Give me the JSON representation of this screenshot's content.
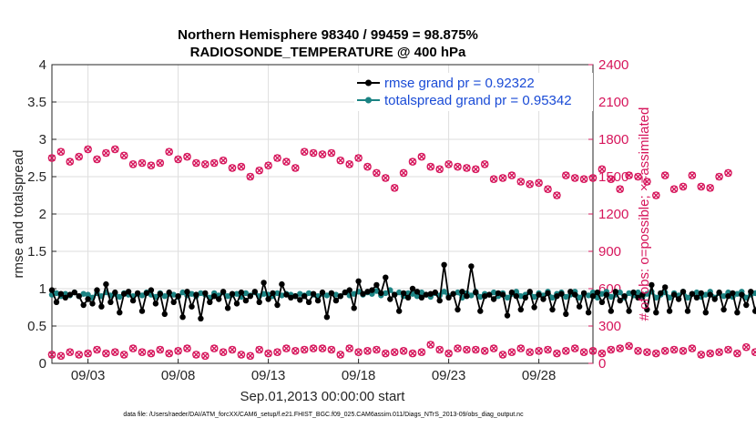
{
  "chart_data": {
    "type": "line",
    "title": "Northern Hemisphere 98340 / 99459 = 98.875%",
    "subtitle": "RADIOSONDE_TEMPERATURE @ 400 hPa",
    "xlabel": "Sep.01,2013 00:00:00 start",
    "ylabel_left": "rmse and totalspread",
    "ylabel_right": "# of obs: o=possible; ×=assimilated",
    "footnote": "data file: /Users/raeder/DAI/ATM_forcXX/CAM6_setup/f.e21.FHIST_BGC.f09_025.CAM6assim.011/Diags_NTrS_2013-09/obs_diag_output.nc",
    "x_range_days": [
      1.0,
      31.0
    ],
    "x_ticks": [
      {
        "day": 3,
        "label": "09/03"
      },
      {
        "day": 8,
        "label": "09/08"
      },
      {
        "day": 13,
        "label": "09/13"
      },
      {
        "day": 18,
        "label": "09/18"
      },
      {
        "day": 23,
        "label": "09/23"
      },
      {
        "day": 28,
        "label": "09/28"
      }
    ],
    "ylim_left": [
      0,
      4
    ],
    "yticks_left": [
      "0",
      "0.5",
      "1",
      "1.5",
      "2",
      "2.5",
      "3",
      "3.5",
      "4"
    ],
    "ylim_right": [
      0,
      2400
    ],
    "yticks_right": [
      "0",
      "300",
      "600",
      "900",
      "1200",
      "1500",
      "1800",
      "2100",
      "2400"
    ],
    "grid": true,
    "legend_position": "top-right",
    "series": [
      {
        "name": "rmse grand pr = 0.92322",
        "axis": "left",
        "color": "#000000",
        "marker": "filled-circle",
        "x_start_day": 1.0,
        "x_step_days": 0.25,
        "values": [
          0.98,
          0.82,
          0.93,
          0.88,
          0.92,
          0.95,
          0.9,
          0.78,
          0.86,
          0.8,
          0.98,
          0.76,
          1.06,
          0.82,
          0.95,
          0.68,
          0.93,
          0.96,
          0.84,
          0.94,
          0.7,
          0.94,
          0.98,
          0.8,
          0.93,
          0.66,
          0.95,
          0.82,
          0.9,
          0.62,
          0.96,
          0.76,
          0.92,
          0.6,
          0.94,
          0.82,
          0.9,
          0.86,
          0.96,
          0.74,
          0.93,
          0.8,
          0.95,
          0.84,
          0.9,
          0.96,
          0.82,
          1.08,
          0.86,
          0.94,
          0.78,
          1.06,
          0.92,
          0.88,
          0.9,
          0.85,
          0.9,
          0.82,
          0.93,
          0.84,
          0.95,
          0.62,
          0.94,
          0.84,
          0.9,
          0.95,
          0.98,
          0.74,
          1.1,
          0.93,
          0.96,
          0.98,
          1.05,
          0.94,
          1.15,
          0.86,
          0.92,
          0.7,
          0.94,
          0.88,
          1.0,
          0.96,
          0.88,
          0.92,
          0.93,
          0.95,
          0.84,
          1.32,
          0.88,
          0.93,
          0.72,
          0.96,
          0.9,
          1.3,
          0.95,
          0.7,
          0.9,
          0.92,
          0.86,
          0.94,
          0.92,
          0.64,
          0.95,
          0.9,
          0.72,
          0.88,
          0.96,
          0.75,
          0.92,
          0.86,
          0.94,
          0.72,
          0.9,
          0.93,
          0.66,
          0.96,
          0.92,
          0.76,
          0.94,
          0.68,
          0.9,
          0.95,
          0.82,
          0.92,
          0.7,
          0.96,
          0.84,
          0.9,
          0.7,
          0.95,
          0.88,
          0.92,
          0.72,
          1.05,
          0.68,
          0.94,
          1.02,
          0.7,
          0.92,
          0.86,
          0.96,
          0.7,
          0.93,
          0.88,
          0.94,
          0.68,
          0.92,
          0.86,
          0.95,
          0.72,
          0.9,
          0.94,
          0.68,
          0.92,
          0.78,
          0.96,
          0.7,
          0.9,
          0.93,
          0.64,
          0.92,
          0.6
        ]
      },
      {
        "name": "totalspread grand pr = 0.95342",
        "axis": "left",
        "color": "#1b8383",
        "marker": "filled-circle",
        "x_start_day": 1.0,
        "x_step_days": 0.25,
        "values": [
          0.92,
          0.94,
          0.9,
          0.93,
          0.91,
          0.95,
          0.9,
          0.93,
          0.92,
          0.88,
          0.94,
          0.9,
          0.95,
          0.91,
          0.93,
          0.89,
          0.94,
          0.92,
          0.9,
          0.93,
          0.91,
          0.95,
          0.92,
          0.89,
          0.94,
          0.9,
          0.93,
          0.92,
          0.89,
          0.95,
          0.91,
          0.93,
          0.9,
          0.94,
          0.92,
          0.88,
          0.94,
          0.91,
          0.95,
          0.9,
          0.92,
          0.93,
          0.89,
          0.94,
          0.91,
          0.95,
          0.9,
          0.93,
          0.92,
          0.9,
          0.94,
          0.91,
          0.93,
          0.92,
          0.9,
          0.93,
          0.91,
          0.94,
          0.92,
          0.9,
          0.93,
          0.91,
          0.94,
          0.92,
          0.9,
          0.95,
          0.91,
          0.93,
          0.96,
          0.92,
          0.95,
          0.93,
          0.97,
          0.91,
          0.94,
          0.98,
          0.92,
          0.95,
          0.9,
          0.94,
          0.93,
          0.9,
          0.95,
          0.92,
          0.89,
          0.94,
          0.91,
          0.96,
          0.9,
          0.93,
          0.95,
          0.88,
          0.94,
          0.91,
          0.96,
          0.89,
          0.93,
          0.92,
          0.95,
          0.9,
          0.94,
          0.88,
          0.93,
          0.96,
          0.9,
          0.92,
          0.95,
          0.89,
          0.94,
          0.91,
          0.96,
          0.88,
          0.93,
          0.95,
          0.89,
          0.92,
          0.96,
          0.88,
          0.94,
          0.91,
          0.95,
          0.88,
          0.93,
          0.96,
          0.89,
          0.92,
          0.95,
          0.88,
          0.94,
          0.91,
          0.95,
          0.89,
          0.93,
          0.96,
          0.88,
          0.92,
          0.95,
          0.88,
          0.94,
          0.91,
          0.96,
          0.88,
          0.93,
          0.95,
          0.89,
          0.92,
          0.96,
          0.88,
          0.94,
          0.9,
          0.95,
          0.89,
          0.93,
          0.96,
          0.88,
          0.92,
          0.94,
          0.9,
          0.93,
          0.91,
          0.95,
          0.88,
          0.93,
          0.91
        ]
      },
      {
        "name": "# obs possible",
        "axis": "right",
        "color": "#d6155b",
        "marker": "circle",
        "x_start_day": 1.0,
        "x_step_days": 0.5,
        "values": [
          1650,
          1700,
          1620,
          1660,
          1720,
          1640,
          1690,
          1720,
          1670,
          1600,
          1610,
          1590,
          1610,
          1700,
          1640,
          1660,
          1610,
          1600,
          1610,
          1630,
          1570,
          1580,
          1500,
          1550,
          1590,
          1650,
          1620,
          1570,
          1700,
          1690,
          1680,
          1690,
          1630,
          1600,
          1650,
          1580,
          1530,
          1490,
          1410,
          1530,
          1620,
          1660,
          1580,
          1560,
          1600,
          1580,
          1570,
          1560,
          1600,
          1480,
          1490,
          1510,
          1460,
          1440,
          1450,
          1400,
          1350,
          1510,
          1490,
          1480,
          1490,
          1560,
          1480,
          1400,
          1510,
          1500,
          1460,
          1350,
          1510,
          1400,
          1420,
          1510,
          1420,
          1410,
          1500,
          1530
        ]
      },
      {
        "name": "# obs assimilated",
        "axis": "right",
        "color": "#d6155b",
        "marker": "x",
        "x_start_day": 1.0,
        "x_step_days": 0.5,
        "values": [
          1650,
          1700,
          1620,
          1660,
          1720,
          1640,
          1690,
          1720,
          1670,
          1600,
          1610,
          1590,
          1610,
          1700,
          1640,
          1660,
          1610,
          1600,
          1610,
          1630,
          1570,
          1580,
          1500,
          1550,
          1590,
          1650,
          1620,
          1570,
          1700,
          1690,
          1680,
          1690,
          1630,
          1600,
          1650,
          1580,
          1530,
          1490,
          1410,
          1530,
          1620,
          1660,
          1580,
          1560,
          1600,
          1580,
          1570,
          1560,
          1600,
          1480,
          1490,
          1510,
          1460,
          1440,
          1450,
          1400,
          1350,
          1510,
          1490,
          1480,
          1490,
          1560,
          1480,
          1400,
          1510,
          1500,
          1460,
          1350,
          1510,
          1400,
          1420,
          1510,
          1420,
          1410,
          1500,
          1530
        ]
      },
      {
        "name": "# obs rejected",
        "axis": "right",
        "color": "#d6155b",
        "marker": "circle",
        "x_start_day": 1.0,
        "x_step_days": 0.5,
        "values": [
          70,
          60,
          90,
          70,
          80,
          110,
          80,
          90,
          70,
          120,
          90,
          80,
          110,
          80,
          100,
          120,
          70,
          60,
          120,
          90,
          110,
          70,
          60,
          110,
          80,
          90,
          120,
          100,
          110,
          120,
          120,
          110,
          70,
          120,
          90,
          100,
          110,
          80,
          90,
          100,
          80,
          90,
          150,
          110,
          80,
          120,
          110,
          110,
          100,
          120,
          70,
          90,
          120,
          90,
          100,
          110,
          80,
          100,
          120,
          90,
          100,
          80,
          110,
          120,
          140,
          100,
          90,
          80,
          100,
          110,
          100,
          120,
          70,
          80,
          90,
          110,
          80,
          130,
          90,
          0
        ]
      },
      {
        "name": "# obs rejected assimilated",
        "axis": "right",
        "color": "#d6155b",
        "marker": "x",
        "x_start_day": 1.0,
        "x_step_days": 0.5,
        "values": [
          70,
          60,
          90,
          70,
          80,
          110,
          80,
          90,
          70,
          120,
          90,
          80,
          110,
          80,
          100,
          120,
          70,
          60,
          120,
          90,
          110,
          70,
          60,
          110,
          80,
          90,
          120,
          100,
          110,
          120,
          120,
          110,
          70,
          120,
          90,
          100,
          110,
          80,
          90,
          100,
          80,
          90,
          150,
          110,
          80,
          120,
          110,
          110,
          100,
          120,
          70,
          90,
          120,
          90,
          100,
          110,
          80,
          100,
          120,
          90,
          100,
          80,
          110,
          120,
          140,
          100,
          90,
          80,
          100,
          110,
          100,
          120,
          70,
          80,
          90,
          110,
          80,
          130,
          90,
          0
        ]
      }
    ]
  }
}
